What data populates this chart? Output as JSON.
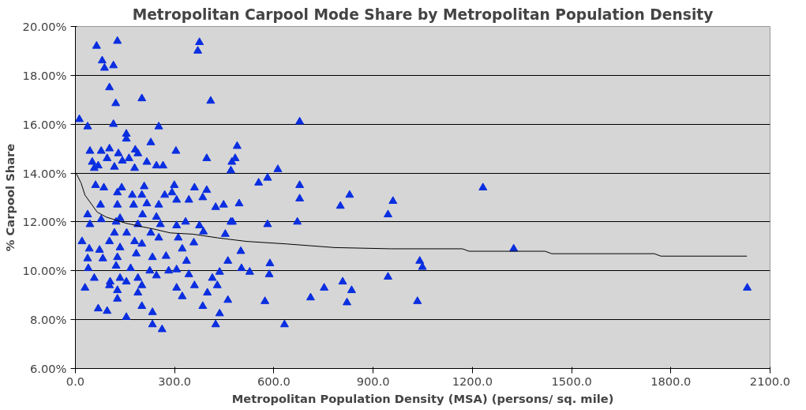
{
  "chart_data": {
    "type": "scatter",
    "title": "Metropolitan Carpool Mode Share by Metropolitan Population Density",
    "xlabel": "Metropolitan Population Density (MSA) (persons/ sq. mile)",
    "ylabel": "% Carpool Share",
    "xlim": [
      0,
      2100
    ],
    "ylim": [
      6,
      20
    ],
    "xticks": [
      {
        "value": 0,
        "label": "0.0"
      },
      {
        "value": 300,
        "label": "300.0"
      },
      {
        "value": 600,
        "label": "600.0"
      },
      {
        "value": 900,
        "label": "900.0"
      },
      {
        "value": 1200,
        "label": "1200.0"
      },
      {
        "value": 1500,
        "label": "1500.0"
      },
      {
        "value": 1800,
        "label": "1800.0"
      },
      {
        "value": 2100,
        "label": "2100.0"
      }
    ],
    "yticks": [
      {
        "value": 6,
        "label": "6.00%"
      },
      {
        "value": 8,
        "label": "8.00%"
      },
      {
        "value": 10,
        "label": "10.00%"
      },
      {
        "value": 12,
        "label": "12.00%"
      },
      {
        "value": 14,
        "label": "14.00%"
      },
      {
        "value": 16,
        "label": "16.00%"
      },
      {
        "value": 18,
        "label": "18.00%"
      },
      {
        "value": 20,
        "label": "20.00%"
      }
    ],
    "grid": "y",
    "marker": "triangle",
    "series": [
      {
        "color": "#0a2ee0",
        "x": [
          64,
          127,
          81,
          88,
          115,
          375,
          370,
          103,
          122,
          201,
          409,
          12,
          37,
          115,
          154,
          154,
          252,
          228,
          44,
          78,
          103,
          130,
          181,
          189,
          304,
          397,
          51,
          69,
          96,
          142,
          162,
          216,
          245,
          265,
          57,
          118,
          179,
          470,
          473,
          61,
          86,
          140,
          208,
          299,
          360,
          397,
          127,
          172,
          201,
          270,
          292,
          306,
          343,
          385,
          76,
          127,
          176,
          216,
          252,
          424,
          448,
          37,
          78,
          135,
          203,
          245,
          44,
          123,
          189,
          257,
          306,
          333,
          375,
          470,
          118,
          155,
          228,
          387,
          453,
          20,
          103,
          179,
          252,
          311,
          42,
          73,
          135,
          201,
          358,
          323,
          37,
          83,
          127,
          184,
          233,
          274,
          336,
          461,
          39,
          123,
          167,
          225,
          282,
          306,
          436,
          57,
          135,
          189,
          245,
          343,
          414,
          29,
          103,
          105,
          154,
          201,
          306,
          360,
          429,
          127,
          189,
          323,
          399,
          127,
          461,
          69,
          201,
          385,
          96,
          233,
          436,
          154,
          233,
          262,
          424,
          678,
          489,
          483,
          612,
          554,
          581,
          678,
          678,
          495,
          829,
          801,
          960,
          945,
          475,
          581,
          671,
          500,
          588,
          502,
          527,
          586,
          945,
          1041,
          808,
          835,
          752,
          711,
          821,
          573,
          1034,
          632,
          1232,
          1049,
          1325,
          2031
        ],
        "values": [
          19.2,
          19.4,
          18.6,
          18.3,
          18.4,
          19.35,
          19.0,
          17.5,
          16.85,
          17.05,
          16.95,
          16.2,
          15.9,
          16.0,
          15.6,
          15.4,
          15.9,
          15.25,
          14.9,
          14.9,
          15.0,
          14.8,
          14.95,
          14.8,
          14.9,
          14.6,
          14.45,
          14.3,
          14.6,
          14.5,
          14.6,
          14.45,
          14.3,
          14.3,
          14.2,
          14.25,
          14.2,
          14.1,
          14.45,
          13.5,
          13.4,
          13.4,
          13.45,
          13.5,
          13.4,
          13.3,
          13.2,
          13.1,
          13.1,
          13.1,
          13.2,
          12.9,
          12.9,
          13.0,
          12.7,
          12.7,
          12.7,
          12.75,
          12.7,
          12.6,
          12.7,
          12.3,
          12.1,
          12.15,
          12.3,
          12.2,
          11.9,
          12.0,
          11.9,
          11.9,
          11.85,
          12.0,
          11.85,
          12.0,
          11.55,
          11.55,
          11.55,
          11.6,
          11.5,
          11.2,
          11.2,
          11.2,
          11.35,
          11.35,
          10.9,
          10.85,
          10.95,
          11.1,
          11.15,
          10.9,
          10.5,
          10.5,
          10.55,
          10.7,
          10.55,
          10.6,
          10.4,
          10.4,
          10.1,
          10.2,
          10.1,
          10.0,
          10.0,
          10.05,
          9.95,
          9.7,
          9.7,
          9.7,
          9.8,
          9.85,
          9.7,
          9.3,
          9.4,
          9.55,
          9.55,
          9.4,
          9.3,
          9.4,
          9.4,
          9.2,
          9.1,
          8.95,
          9.1,
          8.85,
          8.8,
          8.45,
          8.55,
          8.55,
          8.35,
          8.3,
          8.25,
          8.1,
          7.8,
          7.6,
          7.8,
          16.1,
          15.1,
          14.6,
          14.15,
          13.6,
          13.8,
          13.5,
          12.95,
          12.75,
          13.1,
          12.65,
          12.85,
          12.3,
          12.0,
          11.9,
          12.0,
          10.8,
          10.3,
          10.1,
          9.95,
          9.85,
          9.75,
          10.4,
          9.55,
          9.2,
          9.3,
          8.9,
          8.7,
          8.75,
          8.75,
          7.8,
          13.4,
          10.15,
          10.9,
          9.3
        ]
      },
      {
        "type": "line",
        "color": "#000000",
        "marker": "none",
        "line_style": "solid",
        "x": [
          2,
          17,
          29,
          66,
          93,
          152,
          203,
          240,
          287,
          355,
          429,
          519,
          637,
          784,
          955,
          1170,
          1190,
          1420,
          1440,
          1750,
          1770,
          2030
        ],
        "values": [
          14.0,
          13.6,
          13.1,
          12.4,
          12.2,
          11.95,
          11.8,
          11.7,
          11.55,
          11.5,
          11.35,
          11.2,
          11.1,
          10.95,
          10.9,
          10.9,
          10.8,
          10.8,
          10.7,
          10.7,
          10.6,
          10.6
        ]
      }
    ]
  }
}
